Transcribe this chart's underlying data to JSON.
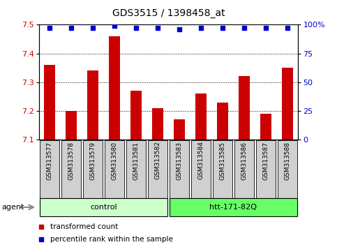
{
  "title": "GDS3515 / 1398458_at",
  "samples": [
    "GSM313577",
    "GSM313578",
    "GSM313579",
    "GSM313580",
    "GSM313581",
    "GSM313582",
    "GSM313583",
    "GSM313584",
    "GSM313585",
    "GSM313586",
    "GSM313587",
    "GSM313588"
  ],
  "bar_values": [
    7.36,
    7.2,
    7.34,
    7.46,
    7.27,
    7.21,
    7.17,
    7.26,
    7.23,
    7.32,
    7.19,
    7.35
  ],
  "percentile_values": [
    97,
    97,
    97,
    99,
    97,
    97,
    96,
    97,
    97,
    97,
    97,
    97
  ],
  "bar_color": "#cc0000",
  "percentile_color": "#0000cc",
  "ylim_left": [
    7.1,
    7.5
  ],
  "ylim_right": [
    0,
    100
  ],
  "yticks_left": [
    7.1,
    7.2,
    7.3,
    7.4,
    7.5
  ],
  "yticks_right": [
    0,
    25,
    50,
    75,
    100
  ],
  "ytick_labels_right": [
    "0",
    "25",
    "50",
    "75",
    "100%"
  ],
  "control_label": "control",
  "treatment_label": "htt-171-82Q",
  "agent_label": "agent",
  "legend_bar_label": "transformed count",
  "legend_dot_label": "percentile rank within the sample",
  "control_color": "#ccffcc",
  "treatment_color": "#66ff66",
  "xticklabel_bg": "#d0d0d0",
  "bar_width": 0.5,
  "title_fontsize": 10,
  "tick_fontsize": 8,
  "label_fontsize": 8
}
